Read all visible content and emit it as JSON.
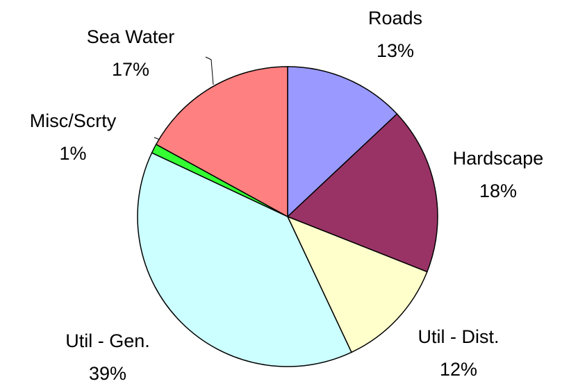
{
  "chart_data": {
    "type": "pie",
    "categories": [
      "Roads",
      "Hardscape",
      "Util - Dist.",
      "Util - Gen.",
      "Misc/Scrty",
      "Sea Water"
    ],
    "values": [
      13,
      18,
      12,
      39,
      1,
      17
    ],
    "value_labels": [
      "13%",
      "18%",
      "12%",
      "39%",
      "1%",
      "17%"
    ],
    "colors": [
      "#9999ff",
      "#993366",
      "#ffffcc",
      "#ccffff",
      "#33ff33",
      "#ff8080"
    ]
  }
}
